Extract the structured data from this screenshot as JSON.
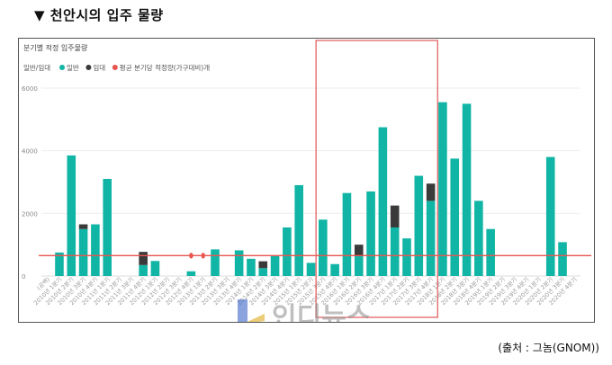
{
  "heading": "▼ 천안시의 입주 물량",
  "source": "(출처 : 그놈(GNOM))",
  "watermark": "인디뉴스",
  "colors": {
    "general": "#10b5a5",
    "rental": "#3a3a3a",
    "average_line": "#e8554e",
    "highlight_box": "#e26464",
    "grid": "#eeeeee"
  },
  "chart_data": {
    "type": "bar",
    "stacked": true,
    "title": "분기별 적정 입주물량",
    "legend": {
      "title": "일반/임대",
      "items": [
        {
          "name": "일반",
          "color": "#10b5a5",
          "marker": "circle"
        },
        {
          "name": "임대",
          "color": "#3a3a3a",
          "marker": "circle"
        },
        {
          "name": "평균 분기당 적정량(가구대비)개",
          "color": "#e8554e",
          "marker": "circle"
        }
      ],
      "position": "top-left"
    },
    "categories": [
      "(공백)",
      "2010년 1분기",
      "2010년 2분기",
      "2010년 3분기",
      "2010년 4분기",
      "2011년 1분기",
      "2011년 2분기",
      "2011년 3분기",
      "2011년 4분기",
      "2012년 1분기",
      "2012년 2분기",
      "2012년 3분기",
      "2012년 4분기",
      "2013년 1분기",
      "2013년 2분기",
      "2013년 3분기",
      "2013년 4분기",
      "2014년 1분기",
      "2014년 2분기",
      "2014년 3분기",
      "2014년 4분기",
      "2015년 1분기",
      "2015년 2분기",
      "2015년 3분기",
      "2015년 4분기",
      "2016년 1분기",
      "2016년 2분기",
      "2016년 3분기",
      "2016년 4분기",
      "2017년 1분기",
      "2017년 2분기",
      "2017년 3분기",
      "2017년 4분기",
      "2018년 1분기",
      "2018년 2분기",
      "2018년 3분기",
      "2018년 4분기",
      "2019년 1분기",
      "2019년 2분기",
      "2019년 3분기",
      "2019년 4분기",
      "2020년 1분기",
      "2020년 2분기",
      "2020년 3분기",
      "2020년 4분기"
    ],
    "series": [
      {
        "name": "일반",
        "values": [
          0,
          750,
          3850,
          1500,
          1650,
          3100,
          0,
          0,
          350,
          480,
          0,
          0,
          150,
          0,
          850,
          0,
          820,
          550,
          250,
          650,
          1550,
          2900,
          420,
          1800,
          380,
          2650,
          650,
          2700,
          4750,
          1550,
          1200,
          3200,
          2400,
          5550,
          3750,
          5500,
          2400,
          1500,
          0,
          0,
          0,
          0,
          3800,
          1080,
          0
        ]
      },
      {
        "name": "임대",
        "values": [
          0,
          0,
          0,
          150,
          0,
          0,
          0,
          0,
          420,
          0,
          0,
          0,
          0,
          0,
          0,
          0,
          0,
          0,
          220,
          0,
          0,
          0,
          0,
          0,
          0,
          0,
          350,
          0,
          0,
          700,
          0,
          0,
          550,
          0,
          0,
          0,
          0,
          0,
          0,
          0,
          0,
          0,
          0,
          0,
          0
        ]
      }
    ],
    "average_line": 650,
    "red_markers": [
      {
        "category": "2012년 4분기",
        "value": 650
      },
      {
        "category": "2013년 1분기",
        "value": 650
      }
    ],
    "highlight_range": [
      "2015년 3분기",
      "2017년 4분기"
    ],
    "yticks": [
      0,
      2000,
      4000,
      6000
    ],
    "ylim": [
      -1200,
      6000
    ],
    "grid": true
  }
}
